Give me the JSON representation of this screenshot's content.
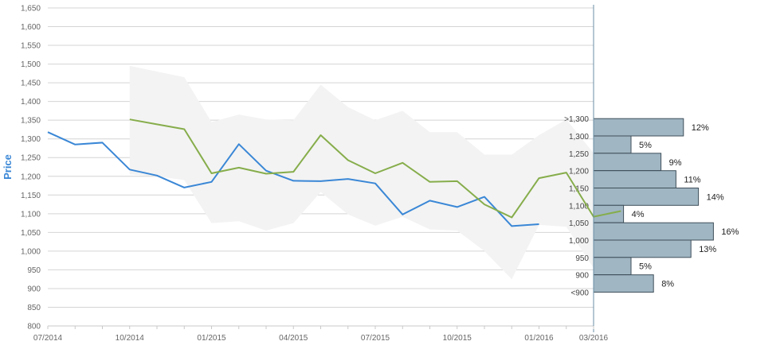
{
  "chart_data": {
    "type": "line",
    "ylabel": "Price",
    "ylim": [
      800,
      1650
    ],
    "yticks": [
      800,
      850,
      900,
      950,
      1000,
      1050,
      1100,
      1150,
      1200,
      1250,
      1300,
      1350,
      1400,
      1450,
      1500,
      1550,
      1600,
      1650
    ],
    "ytick_labels": [
      "800",
      "850",
      "900",
      "950",
      "1,000",
      "1,050",
      "1,100",
      "1,150",
      "1,200",
      "1,250",
      "1,300",
      "1,350",
      "1,400",
      "1,450",
      "1,500",
      "1,550",
      "1,600",
      "1,650"
    ],
    "xlim": [
      "2014-07",
      "2016-03"
    ],
    "xtick_labels": [
      "07/2014",
      "10/2014",
      "01/2015",
      "04/2015",
      "07/2015",
      "10/2015",
      "01/2016",
      "03/2016"
    ],
    "xtick_months": [
      "2014-07",
      "2014-10",
      "2015-01",
      "2015-04",
      "2015-07",
      "2015-10",
      "2016-01",
      "2016-03"
    ],
    "grid": true,
    "series": [
      {
        "color": "#3a87d6",
        "points": [
          [
            "2014-07",
            1318
          ],
          [
            "2014-08",
            1285
          ],
          [
            "2014-09",
            1290
          ],
          [
            "2014-10",
            1218
          ],
          [
            "2014-11",
            1202
          ],
          [
            "2014-12",
            1170
          ],
          [
            "2015-01",
            1185
          ],
          [
            "2015-02",
            1286
          ],
          [
            "2015-03",
            1215
          ],
          [
            "2015-04",
            1188
          ],
          [
            "2015-05",
            1187
          ],
          [
            "2015-06",
            1193
          ],
          [
            "2015-07",
            1181
          ],
          [
            "2015-08",
            1098
          ],
          [
            "2015-09",
            1135
          ],
          [
            "2015-10",
            1118
          ],
          [
            "2015-11",
            1145
          ],
          [
            "2015-12",
            1067
          ],
          [
            "2016-01",
            1072
          ]
        ]
      },
      {
        "color": "#86ad4b",
        "points": [
          [
            "2014-10",
            1352
          ],
          [
            "2014-11",
            1339
          ],
          [
            "2014-12",
            1326
          ],
          [
            "2015-01",
            1208
          ],
          [
            "2015-02",
            1223
          ],
          [
            "2015-03",
            1207
          ],
          [
            "2015-04",
            1212
          ],
          [
            "2015-05",
            1310
          ],
          [
            "2015-06",
            1243
          ],
          [
            "2015-07",
            1208
          ],
          [
            "2015-08",
            1236
          ],
          [
            "2015-09",
            1185
          ],
          [
            "2015-10",
            1187
          ],
          [
            "2015-11",
            1125
          ],
          [
            "2015-12",
            1090
          ],
          [
            "2016-01",
            1195
          ],
          [
            "2016-02",
            1210
          ],
          [
            "2016-03",
            1092
          ],
          [
            "2016-04",
            1107
          ]
        ]
      }
    ],
    "band": {
      "color": "#f3f3f3",
      "upper": [
        [
          "2014-10",
          1495
        ],
        [
          "2014-12",
          1465
        ],
        [
          "2015-01",
          1345
        ],
        [
          "2015-02",
          1365
        ],
        [
          "2015-03",
          1352
        ],
        [
          "2015-04",
          1350
        ],
        [
          "2015-05",
          1445
        ],
        [
          "2015-06",
          1385
        ],
        [
          "2015-07",
          1350
        ],
        [
          "2015-08",
          1375
        ],
        [
          "2015-09",
          1318
        ],
        [
          "2015-10",
          1318
        ],
        [
          "2015-11",
          1258
        ],
        [
          "2015-12",
          1258
        ],
        [
          "2016-01",
          1310
        ],
        [
          "2016-02",
          1352
        ],
        [
          "2016-03",
          1262
        ],
        [
          "2016-04",
          1270
        ]
      ],
      "lower": [
        [
          "2016-04",
          970
        ],
        [
          "2016-03",
          955
        ],
        [
          "2016-02",
          1065
        ],
        [
          "2016-01",
          1070
        ],
        [
          "2015-12",
          925
        ],
        [
          "2015-11",
          1000
        ],
        [
          "2015-10",
          1055
        ],
        [
          "2015-09",
          1058
        ],
        [
          "2015-08",
          1092
        ],
        [
          "2015-07",
          1068
        ],
        [
          "2015-06",
          1098
        ],
        [
          "2015-05",
          1158
        ],
        [
          "2015-04",
          1075
        ],
        [
          "2015-03",
          1055
        ],
        [
          "2015-02",
          1080
        ],
        [
          "2015-01",
          1075
        ],
        [
          "2014-12",
          1190
        ],
        [
          "2014-11",
          1200
        ],
        [
          "2014-10",
          1205
        ]
      ]
    },
    "distribution": {
      "color": "#a0b6c3",
      "buckets": [
        {
          "label": ">1,300",
          "pct": 12,
          "text": "12%"
        },
        {
          "label": "1,300",
          "pct": 5,
          "text": "5%"
        },
        {
          "label": "1,250",
          "pct": 9,
          "text": "9%"
        },
        {
          "label": "1,200",
          "pct": 11,
          "text": "11%"
        },
        {
          "label": "1,150",
          "pct": 14,
          "text": "14%"
        },
        {
          "label": "1,100",
          "pct": 4,
          "text": "4%"
        },
        {
          "label": "1,050",
          "pct": 16,
          "text": "16%"
        },
        {
          "label": "1,000",
          "pct": 13,
          "text": "13%"
        },
        {
          "label": "950",
          "pct": 5,
          "text": "5%"
        },
        {
          "label": "900",
          "pct": 8,
          "text": "8%"
        },
        {
          "label": "<900",
          "pct": 0,
          "text": ""
        }
      ]
    }
  }
}
